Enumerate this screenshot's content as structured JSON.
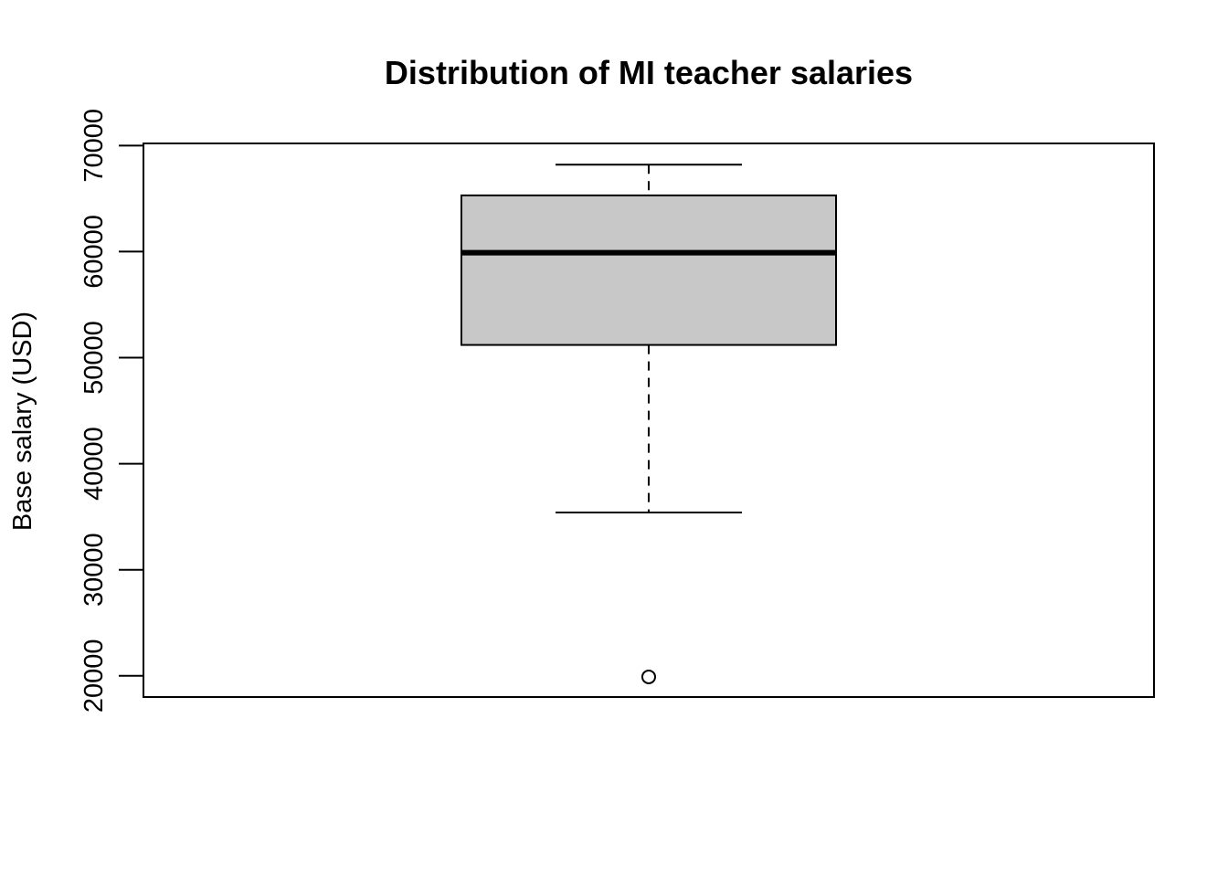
{
  "chart_data": {
    "type": "boxplot",
    "title": "Distribution of MI teacher salaries",
    "xlabel": "",
    "ylabel": "Base salary (USD)",
    "ylim": [
      18000,
      70200
    ],
    "yticks": [
      20000,
      30000,
      40000,
      50000,
      60000,
      70000
    ],
    "grid": false,
    "box": {
      "whisker_low": 35400,
      "q1": 51200,
      "median": 59900,
      "q3": 65300,
      "whisker_high": 68200,
      "outliers": [
        19900
      ]
    },
    "colors": {
      "box_fill": "#c8c8c8",
      "stroke": "#000000"
    }
  }
}
